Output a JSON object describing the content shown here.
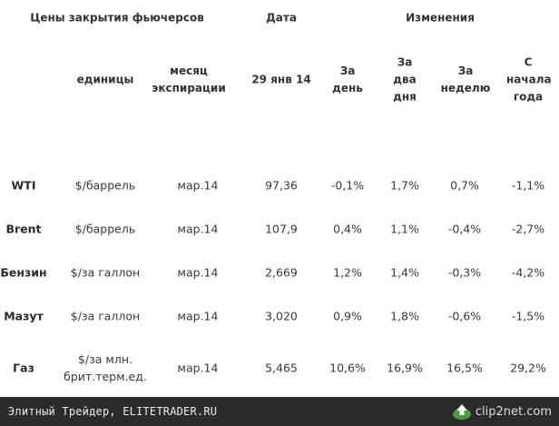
{
  "table": {
    "title": "Цены закрытия фьючерсов",
    "date_header": "Дата",
    "changes_header": "Изменения",
    "columns": {
      "units": "единицы",
      "expiry": "месяц экспирации",
      "date_value": "29 янв 14",
      "day": "За день",
      "two_days": "За два дня",
      "week": "За неделю",
      "ytd": "С начала года"
    },
    "rows": [
      {
        "name": "WTI",
        "units": "$/баррель",
        "expiry": "мар.14",
        "price": "97,36",
        "day": "-0,1%",
        "two_days": "1,7%",
        "week": "0,7%",
        "ytd": "-1,1%"
      },
      {
        "name": "Brent",
        "units": "$/баррель",
        "expiry": "мар.14",
        "price": "107,9",
        "day": "0,4%",
        "two_days": "1,1%",
        "week": "-0,4%",
        "ytd": "-2,7%"
      },
      {
        "name": "Бензин",
        "units": "$/за галлон",
        "expiry": "мар.14",
        "price": "2,669",
        "day": "1,2%",
        "two_days": "1,4%",
        "week": "-0,3%",
        "ytd": "-4,2%"
      },
      {
        "name": "Мазут",
        "units": "$/за галлон",
        "expiry": "мар.14",
        "price": "3,020",
        "day": "0,9%",
        "two_days": "1,8%",
        "week": "-0,6%",
        "ytd": "-1,5%"
      },
      {
        "name": "Газ",
        "units": "$/за млн. брит.терм.ед.",
        "expiry": "мар.14",
        "price": "5,465",
        "day": "10,6%",
        "two_days": "16,9%",
        "week": "16,5%",
        "ytd": "29,2%"
      }
    ]
  },
  "footer": {
    "caption": "Элитный Трейдер, ELITETRADER.RU",
    "logo_text": "clip2net.com",
    "logo_icon": "upload-arrow-icon"
  }
}
